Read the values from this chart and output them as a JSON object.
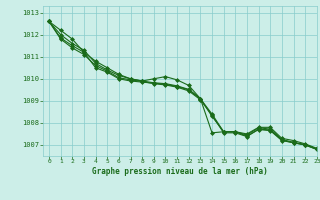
{
  "xlabel": "Graphe pression niveau de la mer (hPa)",
  "bg_color": "#cceee8",
  "grid_color": "#88cccc",
  "line_color": "#1a6b1a",
  "marker": "D",
  "markersize": 2.0,
  "linewidth": 0.8,
  "ylim": [
    1006.5,
    1013.3
  ],
  "xlim": [
    -0.5,
    23
  ],
  "yticks": [
    1007,
    1008,
    1009,
    1010,
    1011,
    1012,
    1013
  ],
  "xticks": [
    0,
    1,
    2,
    3,
    4,
    5,
    6,
    7,
    8,
    9,
    10,
    11,
    12,
    13,
    14,
    15,
    16,
    17,
    18,
    19,
    20,
    21,
    22,
    23
  ],
  "series": [
    [
      1012.6,
      1012.2,
      1011.8,
      1011.2,
      1010.8,
      1010.5,
      1010.2,
      1010.0,
      1009.9,
      1010.0,
      1010.1,
      1009.95,
      1009.7,
      1009.1,
      1007.55,
      1007.6,
      1007.6,
      1007.5,
      1007.8,
      1007.8,
      1007.3,
      1007.2,
      1007.05,
      1006.85
    ],
    [
      1012.6,
      1011.85,
      1011.5,
      1011.2,
      1010.5,
      1010.3,
      1010.0,
      1009.9,
      1009.85,
      1009.8,
      1009.75,
      1009.65,
      1009.5,
      1009.1,
      1008.3,
      1007.6,
      1007.6,
      1007.4,
      1007.7,
      1007.65,
      1007.2,
      1007.1,
      1007.0,
      1006.8
    ],
    [
      1012.6,
      1011.8,
      1011.4,
      1011.1,
      1010.6,
      1010.35,
      1010.05,
      1009.95,
      1009.88,
      1009.78,
      1009.72,
      1009.62,
      1009.45,
      1009.05,
      1008.35,
      1007.55,
      1007.55,
      1007.38,
      1007.72,
      1007.68,
      1007.22,
      1007.1,
      1007.0,
      1006.8
    ],
    [
      1012.6,
      1012.0,
      1011.6,
      1011.3,
      1010.7,
      1010.4,
      1010.15,
      1010.0,
      1009.9,
      1009.82,
      1009.78,
      1009.68,
      1009.52,
      1009.1,
      1008.4,
      1007.6,
      1007.6,
      1007.45,
      1007.78,
      1007.72,
      1007.25,
      1007.12,
      1007.02,
      1006.82
    ]
  ]
}
